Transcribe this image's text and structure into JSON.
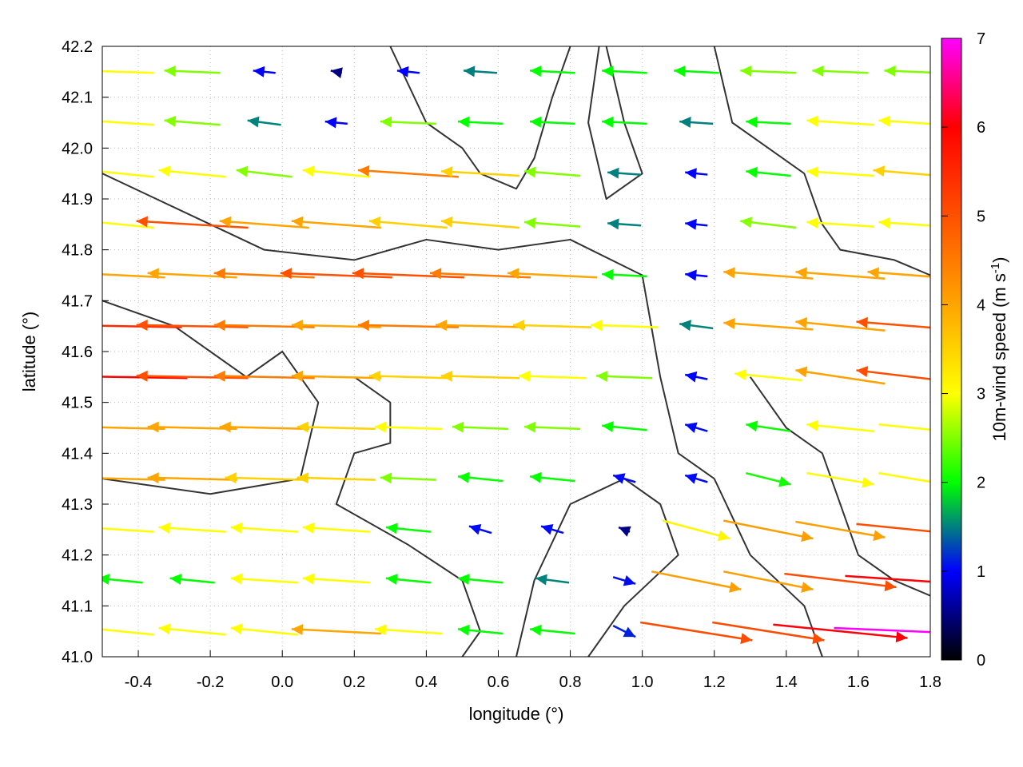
{
  "chart_data": {
    "type": "vector-field",
    "xlabel": "longitude (°)",
    "ylabel": "latitude (°)",
    "colorbar_label": "10m-wind speed (m s",
    "colorbar_label_sup": "-1",
    "colorbar_label_end": ")",
    "xlim": [
      -0.5,
      1.8
    ],
    "ylim": [
      41.0,
      42.2
    ],
    "xticks": [
      "-0.4",
      "-0.2",
      "0.0",
      "0.2",
      "0.4",
      "0.6",
      "0.8",
      "1.0",
      "1.2",
      "1.4",
      "1.6",
      "1.8"
    ],
    "yticks": [
      "41.0",
      "41.1",
      "41.2",
      "41.3",
      "41.4",
      "41.5",
      "41.6",
      "41.7",
      "41.8",
      "41.9",
      "42.0",
      "42.1",
      "42.2"
    ],
    "colorbar_ticks": [
      "0",
      "1",
      "2",
      "3",
      "4",
      "5",
      "6",
      "7"
    ],
    "colorbar_range": [
      0,
      7
    ],
    "colormap": [
      "#000000",
      "#0000ff",
      "#00ff00",
      "#ffff00",
      "#ffa500",
      "#ff5000",
      "#ff0000",
      "#ff00ff"
    ],
    "grid": true,
    "lon": [
      -0.45,
      -0.25,
      -0.05,
      0.15,
      0.35,
      0.55,
      0.75,
      0.95,
      1.15,
      1.35,
      1.55,
      1.75
    ],
    "lat": [
      41.05,
      41.15,
      41.25,
      41.35,
      41.45,
      41.55,
      41.65,
      41.75,
      41.85,
      41.95,
      42.05,
      42.15
    ],
    "u": [
      [
        -3,
        -3,
        -3,
        -4,
        -3,
        -2,
        -2,
        1,
        5,
        5,
        6,
        7
      ],
      [
        -2,
        -2,
        -3,
        -3,
        -2,
        -2,
        -1.5,
        1,
        4,
        4,
        5,
        6
      ],
      [
        -3,
        -3,
        -3,
        -3,
        -2,
        -1,
        -1,
        -0.5,
        3,
        4,
        4,
        5
      ],
      [
        -4,
        -4,
        -3.5,
        -3.5,
        -2.5,
        -2,
        -2,
        -1,
        -1,
        2,
        3,
        3
      ],
      [
        -4,
        -4,
        -4,
        -3.5,
        -3,
        -2.5,
        -2.5,
        -2,
        -1,
        -2,
        -3,
        3
      ],
      [
        -6,
        -5,
        -4.5,
        -4,
        -3.5,
        -3.5,
        -3,
        -2.5,
        -1,
        -3,
        -4,
        -5
      ],
      [
        -5.5,
        -5,
        -4.5,
        -4,
        -4.5,
        -4,
        -3.5,
        -3,
        -1.5,
        -4,
        -4,
        -5
      ],
      [
        -4,
        -4,
        -4.5,
        -5,
        -5,
        -4.5,
        -4,
        -2,
        -1,
        -4,
        -4,
        -4
      ],
      [
        -3,
        -5,
        -4,
        -4,
        -3.5,
        -3.5,
        -2.5,
        -1.5,
        -1,
        -2.5,
        -3,
        -3
      ],
      [
        -3,
        -3,
        -2.5,
        -3,
        -4.5,
        -3.5,
        -2.5,
        -1.5,
        -1,
        -2,
        -3,
        -3.5
      ],
      [
        -3,
        -2.5,
        -1.5,
        -1,
        -2.5,
        -2,
        -2,
        -2,
        -1.5,
        -2,
        -3,
        -3
      ],
      [
        -3,
        -2.5,
        -1,
        -0.5,
        -1,
        -1.5,
        -2,
        -2,
        -2,
        -2.5,
        -2.5,
        -2.5
      ]
    ],
    "v": [
      [
        0.3,
        0.3,
        0.3,
        0.2,
        0.2,
        0.2,
        0.2,
        -0.5,
        -0.8,
        -0.8,
        -0.6,
        -0.3
      ],
      [
        0.2,
        0.2,
        0.2,
        0.2,
        0.2,
        0.2,
        0.2,
        -0.3,
        -0.8,
        -0.8,
        -0.6,
        -0.4
      ],
      [
        0.2,
        0.2,
        0.2,
        0.2,
        0.2,
        0.3,
        0.3,
        0.2,
        -0.8,
        -0.8,
        -0.7,
        -0.5
      ],
      [
        0.1,
        0.1,
        0.1,
        0.1,
        0.1,
        0.2,
        0.2,
        0.3,
        0.3,
        -0.5,
        -0.5,
        -0.5
      ],
      [
        0.1,
        0.1,
        0.1,
        0.1,
        0.1,
        0.1,
        0.1,
        0.2,
        0.3,
        0.3,
        0.3,
        -0.3
      ],
      [
        0.1,
        0.1,
        0.1,
        0.1,
        0.1,
        0.1,
        0.1,
        0.1,
        0.2,
        0.3,
        0.6,
        0.6
      ],
      [
        0.1,
        0.1,
        0.1,
        0.1,
        0.1,
        0.1,
        0.1,
        0.1,
        0.2,
        0.3,
        0.4,
        0.4
      ],
      [
        0.2,
        0.2,
        0.2,
        0.2,
        0.2,
        0.2,
        0.2,
        0.1,
        0.1,
        0.3,
        0.3,
        0.3
      ],
      [
        0.3,
        0.3,
        0.3,
        0.3,
        0.3,
        0.3,
        0.2,
        0.1,
        0.1,
        0.3,
        0.2,
        0.2
      ],
      [
        0.3,
        0.3,
        0.3,
        0.3,
        0.3,
        0.2,
        0.2,
        0.1,
        0.1,
        0.2,
        0.2,
        0.3
      ],
      [
        0.2,
        0.2,
        0.2,
        0.1,
        0.1,
        0.1,
        0.1,
        0.1,
        0.1,
        0.1,
        0.2,
        0.2
      ],
      [
        0.1,
        0.1,
        0.1,
        0.1,
        0.1,
        0.1,
        0.1,
        0.1,
        0.1,
        0.1,
        0.1,
        0.1
      ]
    ],
    "contours": [
      [
        [
          -0.5,
          41.95
        ],
        [
          -0.35,
          41.9
        ],
        [
          -0.2,
          41.85
        ],
        [
          -0.05,
          41.8
        ],
        [
          0.2,
          41.78
        ],
        [
          0.4,
          41.82
        ],
        [
          0.6,
          41.8
        ],
        [
          0.8,
          41.82
        ],
        [
          1.0,
          41.75
        ],
        [
          1.05,
          41.55
        ],
        [
          1.1,
          41.4
        ],
        [
          1.2,
          41.35
        ],
        [
          1.3,
          41.2
        ],
        [
          1.45,
          41.1
        ],
        [
          1.5,
          41.0
        ]
      ],
      [
        [
          -0.5,
          41.7
        ],
        [
          -0.3,
          41.65
        ],
        [
          -0.2,
          41.6
        ],
        [
          -0.1,
          41.55
        ],
        [
          0.0,
          41.6
        ],
        [
          0.1,
          41.5
        ],
        [
          0.05,
          41.35
        ],
        [
          -0.2,
          41.32
        ],
        [
          -0.5,
          41.35
        ]
      ],
      [
        [
          0.2,
          41.55
        ],
        [
          0.3,
          41.5
        ],
        [
          0.3,
          41.42
        ],
        [
          0.2,
          41.4
        ],
        [
          0.15,
          41.3
        ],
        [
          0.35,
          41.22
        ],
        [
          0.5,
          41.15
        ],
        [
          0.55,
          41.05
        ],
        [
          0.5,
          41.0
        ]
      ],
      [
        [
          0.65,
          41.0
        ],
        [
          0.7,
          41.15
        ],
        [
          0.8,
          41.3
        ],
        [
          0.95,
          41.35
        ],
        [
          1.05,
          41.3
        ],
        [
          1.1,
          41.2
        ],
        [
          0.95,
          41.1
        ],
        [
          0.85,
          41.0
        ]
      ],
      [
        [
          0.3,
          42.2
        ],
        [
          0.4,
          42.05
        ],
        [
          0.5,
          42.0
        ],
        [
          0.55,
          41.95
        ],
        [
          0.65,
          41.92
        ],
        [
          0.7,
          41.98
        ],
        [
          0.75,
          42.1
        ],
        [
          0.8,
          42.2
        ]
      ],
      [
        [
          1.2,
          42.2
        ],
        [
          1.25,
          42.05
        ],
        [
          1.35,
          42.0
        ],
        [
          1.45,
          41.95
        ],
        [
          1.5,
          41.85
        ],
        [
          1.55,
          41.8
        ],
        [
          1.7,
          41.78
        ],
        [
          1.8,
          41.75
        ]
      ],
      [
        [
          0.9,
          42.2
        ],
        [
          0.95,
          42.05
        ],
        [
          1.0,
          41.95
        ],
        [
          0.9,
          41.9
        ],
        [
          0.85,
          42.05
        ],
        [
          0.88,
          42.2
        ]
      ],
      [
        [
          1.3,
          41.55
        ],
        [
          1.4,
          41.45
        ],
        [
          1.5,
          41.4
        ],
        [
          1.55,
          41.3
        ],
        [
          1.6,
          41.2
        ],
        [
          1.7,
          41.15
        ],
        [
          1.8,
          41.12
        ]
      ]
    ]
  }
}
